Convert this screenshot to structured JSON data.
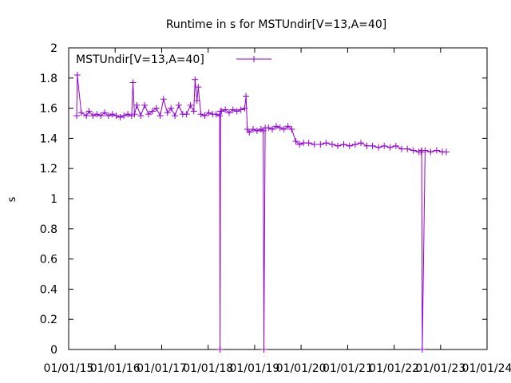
{
  "chart_data": {
    "type": "line",
    "title": "Runtime in s for MSTUndir[V=13,A=40]",
    "xlabel": "",
    "ylabel": "s",
    "xlim": [
      "2015-01-01",
      "2024-01-01"
    ],
    "ylim": [
      0,
      2
    ],
    "x_ticks": [
      "01/01/15",
      "01/01/16",
      "01/01/17",
      "01/01/18",
      "01/01/19",
      "01/01/20",
      "01/01/21",
      "01/01/22",
      "01/01/23",
      "01/01/24"
    ],
    "y_ticks": [
      "0",
      "0.2",
      "0.4",
      "0.6",
      "0.8",
      "1",
      "1.2",
      "1.4",
      "1.6",
      "1.8",
      "2"
    ],
    "grid": false,
    "legend_position": "top-left",
    "series": [
      {
        "name": "MSTUndir[V=13,A=40]",
        "color": "#9400d3",
        "marker": "plus",
        "x": [
          "2015-03-05",
          "2015-03-10",
          "2015-04-10",
          "2015-05-20",
          "2015-06-10",
          "2015-07-10",
          "2015-08-10",
          "2015-09-10",
          "2015-10-10",
          "2015-11-10",
          "2015-12-10",
          "2016-01-10",
          "2016-02-10",
          "2016-03-10",
          "2016-04-10",
          "2016-05-10",
          "2016-05-20",
          "2016-06-01",
          "2016-06-20",
          "2016-07-20",
          "2016-08-20",
          "2016-09-20",
          "2016-10-20",
          "2016-11-20",
          "2016-12-20",
          "2017-01-15",
          "2017-02-15",
          "2017-03-15",
          "2017-04-15",
          "2017-05-15",
          "2017-06-15",
          "2017-07-15",
          "2017-08-15",
          "2017-09-10",
          "2017-09-20",
          "2017-10-05",
          "2017-10-15",
          "2017-11-05",
          "2017-12-05",
          "2018-01-05",
          "2018-02-05",
          "2018-03-05",
          "2018-04-01",
          "2018-04-05",
          "2018-04-08",
          "2018-04-15",
          "2018-05-15",
          "2018-06-15",
          "2018-07-15",
          "2018-08-15",
          "2018-09-15",
          "2018-10-15",
          "2018-10-25",
          "2018-11-05",
          "2018-11-20",
          "2018-12-20",
          "2019-01-20",
          "2019-02-20",
          "2019-03-10",
          "2019-03-15",
          "2019-03-25",
          "2019-04-20",
          "2019-05-20",
          "2019-06-20",
          "2019-07-20",
          "2019-08-20",
          "2019-09-20",
          "2019-10-20",
          "2019-11-20",
          "2019-12-20",
          "2020-01-20",
          "2020-03-01",
          "2020-04-15",
          "2020-06-01",
          "2020-07-15",
          "2020-09-01",
          "2020-10-15",
          "2020-12-01",
          "2021-01-15",
          "2021-03-01",
          "2021-04-15",
          "2021-06-01",
          "2021-07-15",
          "2021-09-01",
          "2021-10-15",
          "2021-12-01",
          "2022-01-15",
          "2022-03-01",
          "2022-04-15",
          "2022-06-01",
          "2022-07-15",
          "2022-08-01",
          "2022-08-05",
          "2022-08-10",
          "2022-09-01",
          "2022-10-15",
          "2022-12-01",
          "2023-01-15",
          "2023-02-15"
        ],
        "y": [
          1.55,
          1.82,
          1.57,
          1.55,
          1.58,
          1.55,
          1.56,
          1.55,
          1.57,
          1.55,
          1.56,
          1.55,
          1.54,
          1.55,
          1.56,
          1.55,
          1.77,
          1.56,
          1.62,
          1.55,
          1.62,
          1.56,
          1.58,
          1.6,
          1.55,
          1.66,
          1.57,
          1.6,
          1.55,
          1.62,
          1.56,
          1.56,
          1.62,
          1.58,
          1.79,
          1.65,
          1.74,
          1.56,
          1.55,
          1.57,
          1.56,
          1.56,
          1.55,
          0.0,
          1.58,
          1.58,
          1.59,
          1.57,
          1.59,
          1.58,
          1.59,
          1.6,
          1.68,
          1.46,
          1.44,
          1.46,
          1.45,
          1.46,
          1.45,
          0.0,
          1.47,
          1.47,
          1.46,
          1.48,
          1.47,
          1.46,
          1.48,
          1.46,
          1.38,
          1.36,
          1.37,
          1.37,
          1.36,
          1.36,
          1.37,
          1.36,
          1.35,
          1.36,
          1.35,
          1.36,
          1.37,
          1.35,
          1.35,
          1.34,
          1.35,
          1.34,
          1.35,
          1.33,
          1.33,
          1.32,
          1.31,
          1.31,
          1.32,
          0.0,
          1.32,
          1.31,
          1.32,
          1.31,
          1.31
        ]
      }
    ]
  }
}
